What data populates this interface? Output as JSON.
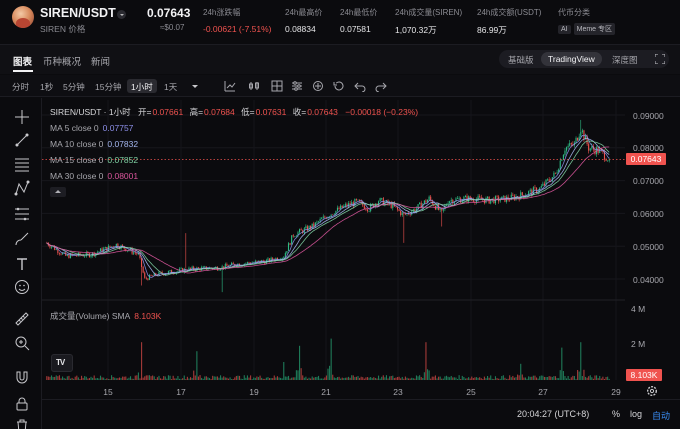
{
  "header": {
    "pair": "SIREN/USDT",
    "pair_sub": "SIREN 价格",
    "price": "0.07643",
    "price_usd": "≈$0.07",
    "stats": [
      {
        "label": "24h涨跌幅",
        "value": "-0.00621 (-7.51%)",
        "tone": "red"
      },
      {
        "label": "24h最高价",
        "value": "0.08834",
        "tone": "plain"
      },
      {
        "label": "24h最低价",
        "value": "0.07581",
        "tone": "plain"
      },
      {
        "label": "24h成交量(SIREN)",
        "value": "1,070.32万",
        "tone": "plain"
      },
      {
        "label": "24h成交额(USDT)",
        "value": "86.99万",
        "tone": "plain"
      },
      {
        "label": "代币分类",
        "value": "",
        "tone": "plain"
      }
    ],
    "tags": [
      "AI",
      "Meme 专区"
    ]
  },
  "tabs": [
    "图表",
    "币种概况",
    "新闻"
  ],
  "view_modes": [
    "基础版",
    "TradingView",
    "深度图"
  ],
  "active_view": "TradingView",
  "timeframes": [
    "分时",
    "1秒",
    "5分钟",
    "15分钟",
    "1小时",
    "1天"
  ],
  "active_timeframe": "1小时",
  "legend": {
    "symbol": "SIREN/USDT · 1小时",
    "open_label": "开=",
    "open": "0.07661",
    "high_label": "高=",
    "high": "0.07684",
    "low_label": "低=",
    "low": "0.07631",
    "close_label": "收=",
    "close": "0.07643",
    "change": "−0.00018 (−0.23%)",
    "ma": [
      {
        "label": "MA 5 close 0",
        "value": "0.07757",
        "color": "#8c8ee8"
      },
      {
        "label": "MA 10 close 0",
        "value": "0.07832",
        "color": "#a5b7f0"
      },
      {
        "label": "MA 15 close 0",
        "value": "0.07852",
        "color": "#7fd1a3"
      },
      {
        "label": "MA 30 close 0",
        "value": "0.08001",
        "color": "#d9559b"
      }
    ]
  },
  "volume": {
    "label": "成交量(Volume) SMA",
    "value": "8.103K",
    "badge": "8.103K"
  },
  "price_axis": [
    "0.09000",
    "0.08000",
    "0.07000",
    "0.06000",
    "0.05000",
    "0.04000"
  ],
  "current_price_badge": "0.07643",
  "volume_axis": [
    "4 M",
    "2 M"
  ],
  "time_axis": [
    "15",
    "17",
    "19",
    "21",
    "23",
    "25",
    "27",
    "29"
  ],
  "bottom": {
    "clock": "20:04:27 (UTC+8)",
    "options": [
      "%",
      "log",
      "自动"
    ],
    "active_option": "自动"
  },
  "chart_data": {
    "type": "candlestick",
    "price_range": [
      0.035,
      0.095
    ],
    "x_labels": [
      "15",
      "17",
      "19",
      "21",
      "23",
      "25",
      "27",
      "29"
    ],
    "anchors": [
      [
        0,
        0.051
      ],
      [
        12,
        0.047
      ],
      [
        28,
        0.0475
      ],
      [
        44,
        0.0505
      ],
      [
        58,
        0.0475
      ],
      [
        62,
        0.04
      ],
      [
        70,
        0.0415
      ],
      [
        90,
        0.043
      ],
      [
        110,
        0.0435
      ],
      [
        120,
        0.0445
      ],
      [
        140,
        0.0455
      ],
      [
        150,
        0.047
      ],
      [
        156,
        0.0535
      ],
      [
        168,
        0.056
      ],
      [
        178,
        0.0595
      ],
      [
        188,
        0.062
      ],
      [
        196,
        0.0635
      ],
      [
        204,
        0.0615
      ],
      [
        210,
        0.064
      ],
      [
        218,
        0.0625
      ],
      [
        226,
        0.0595
      ],
      [
        234,
        0.0615
      ],
      [
        242,
        0.0645
      ],
      [
        250,
        0.06
      ],
      [
        254,
        0.064
      ],
      [
        266,
        0.0645
      ],
      [
        280,
        0.064
      ],
      [
        292,
        0.0645
      ],
      [
        300,
        0.0655
      ],
      [
        312,
        0.0675
      ],
      [
        322,
        0.072
      ],
      [
        328,
        0.08
      ],
      [
        334,
        0.081
      ],
      [
        338,
        0.086
      ],
      [
        343,
        0.08
      ],
      [
        350,
        0.079
      ],
      [
        356,
        0.0764
      ]
    ],
    "spikes": [
      {
        "i": 60,
        "low": 0.038
      },
      {
        "i": 88,
        "low": 0.054
      },
      {
        "i": 111,
        "low": 0.036
      },
      {
        "i": 226,
        "low": 0.051
      },
      {
        "i": 250,
        "low": 0.056
      },
      {
        "i": 338,
        "high": 0.0885
      }
    ],
    "current_price": 0.07643,
    "volume_range_m": [
      0,
      4
    ],
    "volume_peaks": [
      {
        "i": 60,
        "v": 2.1
      },
      {
        "i": 95,
        "v": 1.6
      },
      {
        "i": 150,
        "v": 1.0
      },
      {
        "i": 160,
        "v": 1.9
      },
      {
        "i": 180,
        "v": 2.3
      },
      {
        "i": 240,
        "v": 2.1
      },
      {
        "i": 300,
        "v": 0.9
      },
      {
        "i": 326,
        "v": 1.8
      },
      {
        "i": 338,
        "v": 2.1
      }
    ],
    "ma_periods": [
      5,
      10,
      15,
      30
    ]
  }
}
